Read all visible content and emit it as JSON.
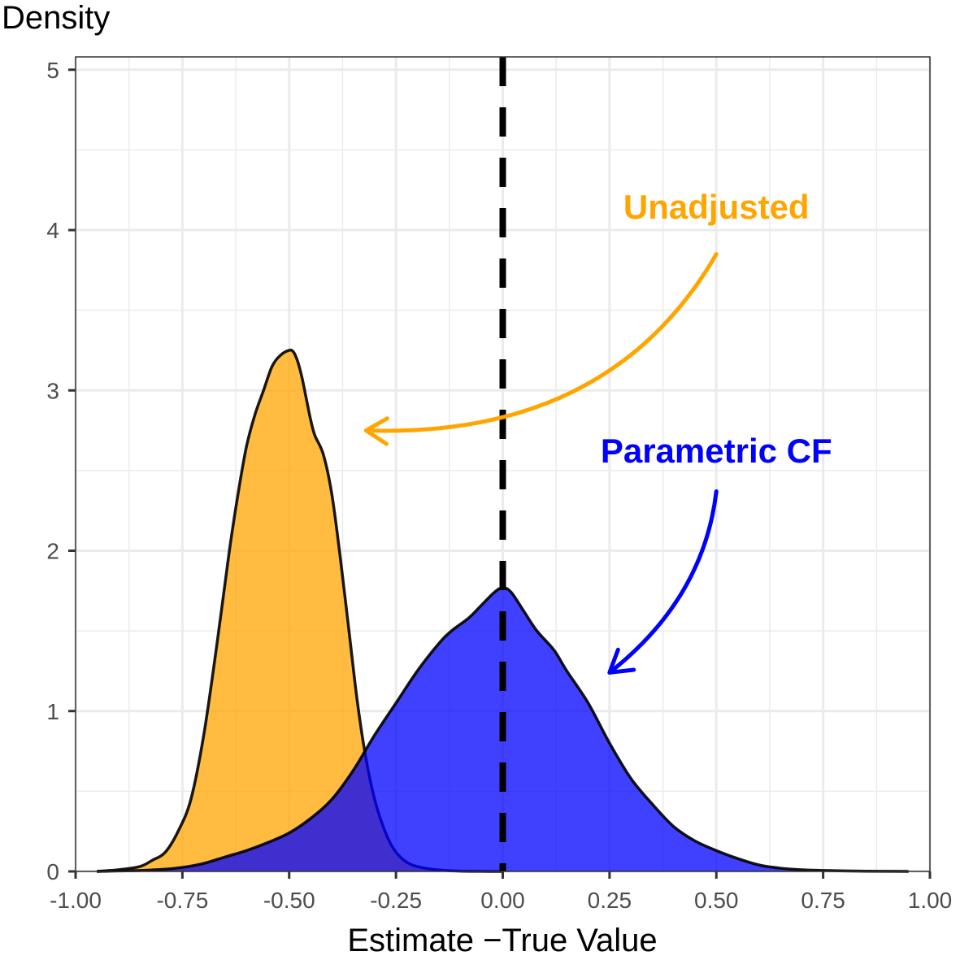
{
  "chart_data": {
    "type": "area",
    "title": "",
    "xlabel": "Estimate −True Value",
    "ylabel": "Density",
    "xlim": [
      -1.0,
      1.0
    ],
    "ylim": [
      0,
      5.08
    ],
    "x_ticks": [
      -1.0,
      -0.75,
      -0.5,
      -0.25,
      0.0,
      0.25,
      0.5,
      0.75,
      1.0
    ],
    "x_tick_labels": [
      "-1.00",
      "-0.75",
      "-0.50",
      "-0.25",
      "0.00",
      "0.25",
      "0.50",
      "0.75",
      "1.00"
    ],
    "y_ticks": [
      0,
      1,
      2,
      3,
      4,
      5
    ],
    "y_tick_labels": [
      "0",
      "1",
      "2",
      "3",
      "4",
      "5"
    ],
    "grid": true,
    "reference_line": {
      "x": 0.0,
      "style": "dashed",
      "color": "#000000"
    },
    "series": [
      {
        "name": "Unadjusted",
        "fill": "#ffa500",
        "opacity": 0.75,
        "x": [
          -0.95,
          -0.9,
          -0.85,
          -0.82,
          -0.79,
          -0.76,
          -0.73,
          -0.7,
          -0.67,
          -0.64,
          -0.62,
          -0.6,
          -0.58,
          -0.56,
          -0.54,
          -0.52,
          -0.5,
          -0.49,
          -0.48,
          -0.47,
          -0.46,
          -0.45,
          -0.44,
          -0.42,
          -0.4,
          -0.38,
          -0.36,
          -0.34,
          -0.32,
          -0.3,
          -0.28,
          -0.26,
          -0.24,
          -0.22,
          -0.2,
          -0.17,
          -0.14,
          -0.1,
          -0.05,
          0.0
        ],
        "y": [
          0.0,
          0.01,
          0.03,
          0.07,
          0.12,
          0.25,
          0.45,
          0.85,
          1.4,
          2.0,
          2.35,
          2.65,
          2.85,
          3.0,
          3.15,
          3.22,
          3.25,
          3.24,
          3.18,
          3.08,
          2.95,
          2.82,
          2.72,
          2.6,
          2.35,
          1.95,
          1.5,
          1.05,
          0.7,
          0.45,
          0.28,
          0.16,
          0.09,
          0.05,
          0.03,
          0.015,
          0.007,
          0.002,
          0.0005,
          0.0
        ]
      },
      {
        "name": "Parametric CF",
        "fill": "#0000ff",
        "opacity": 0.75,
        "x": [
          -0.95,
          -0.9,
          -0.85,
          -0.8,
          -0.75,
          -0.7,
          -0.65,
          -0.6,
          -0.55,
          -0.5,
          -0.45,
          -0.4,
          -0.35,
          -0.3,
          -0.25,
          -0.2,
          -0.15,
          -0.12,
          -0.08,
          -0.05,
          -0.02,
          0.0,
          0.02,
          0.05,
          0.08,
          0.12,
          0.15,
          0.2,
          0.25,
          0.3,
          0.35,
          0.4,
          0.45,
          0.5,
          0.55,
          0.6,
          0.65,
          0.7,
          0.75,
          0.8,
          0.85,
          0.9,
          0.95
        ],
        "y": [
          0.0,
          0.003,
          0.006,
          0.012,
          0.025,
          0.05,
          0.09,
          0.13,
          0.18,
          0.24,
          0.33,
          0.45,
          0.63,
          0.85,
          1.05,
          1.25,
          1.42,
          1.5,
          1.58,
          1.66,
          1.74,
          1.77,
          1.74,
          1.62,
          1.5,
          1.38,
          1.25,
          1.05,
          0.8,
          0.58,
          0.42,
          0.28,
          0.19,
          0.13,
          0.08,
          0.04,
          0.02,
          0.01,
          0.006,
          0.003,
          0.001,
          0.0005,
          0.0
        ]
      }
    ],
    "annotations": [
      {
        "text": "Unadjusted",
        "color": "#ffa500",
        "label_x": 0.5,
        "label_y": 4.07,
        "arrow_from": [
          0.5,
          3.85
        ],
        "arrow_ctrl": [
          0.25,
          2.7
        ],
        "arrow_to": [
          -0.32,
          2.75
        ]
      },
      {
        "text": "Parametric CF",
        "color": "#0000ff",
        "label_x": 0.5,
        "label_y": 2.55,
        "arrow_from": [
          0.5,
          2.37
        ],
        "arrow_ctrl": [
          0.47,
          1.7
        ],
        "arrow_to": [
          0.25,
          1.24
        ]
      }
    ]
  }
}
